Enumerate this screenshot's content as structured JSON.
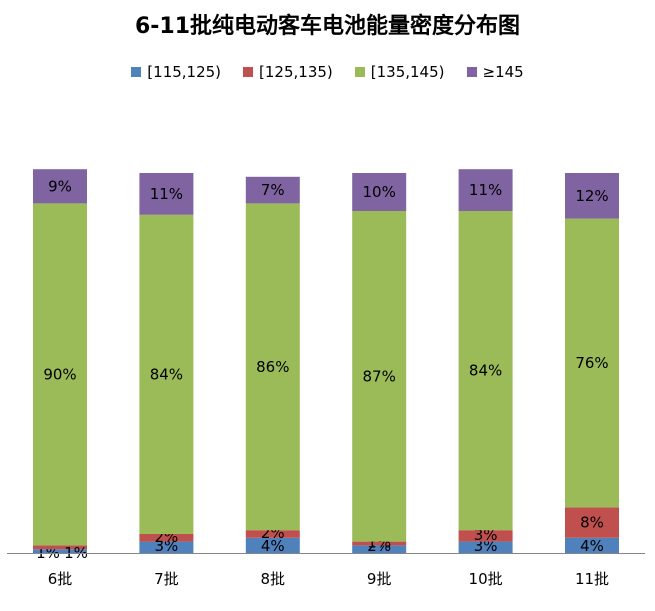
{
  "chart_data": {
    "type": "bar",
    "stacked": true,
    "title": "6-11批纯电动客车电池能量密度分布图",
    "categories": [
      "6批",
      "7批",
      "8批",
      "9批",
      "10批",
      "11批"
    ],
    "series": [
      {
        "name": "[115,125)",
        "color": "#4F81BD",
        "values": [
          1,
          3,
          4,
          2,
          3,
          4
        ],
        "labels": [
          "1%",
          "3%",
          "4%",
          "2%",
          "3%",
          "4%"
        ]
      },
      {
        "name": "[125,135)",
        "color": "#C0504D",
        "values": [
          1,
          2,
          2,
          1,
          3,
          8
        ],
        "labels": [
          "1%",
          "2%",
          "2%",
          "1%",
          "3%",
          "8%"
        ]
      },
      {
        "name": "[135,145)",
        "color": "#9BBB59",
        "values": [
          90,
          84,
          86,
          87,
          84,
          76
        ],
        "labels": [
          "90%",
          "84%",
          "86%",
          "87%",
          "84%",
          "76%"
        ]
      },
      {
        "name": "≥145",
        "color": "#8064A2",
        "values": [
          9,
          11,
          7,
          10,
          11,
          12
        ],
        "labels": [
          "9%",
          "11%",
          "7%",
          "10%",
          "11%",
          "12%"
        ]
      }
    ],
    "ylim": [
      0,
      100
    ],
    "legend": "top",
    "grid": false
  }
}
